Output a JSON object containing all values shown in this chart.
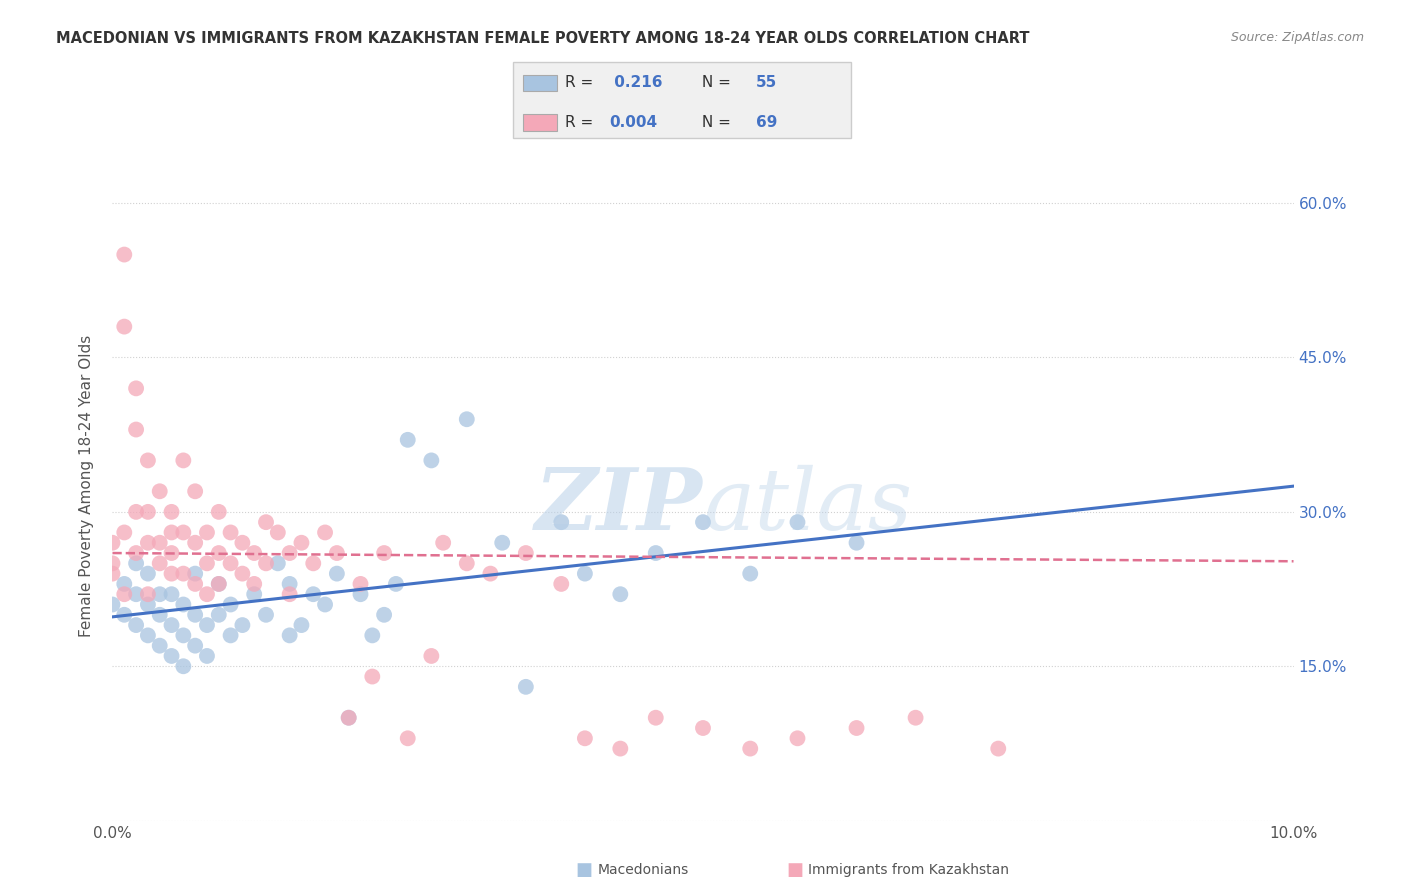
{
  "title": "MACEDONIAN VS IMMIGRANTS FROM KAZAKHSTAN FEMALE POVERTY AMONG 18-24 YEAR OLDS CORRELATION CHART",
  "source": "Source: ZipAtlas.com",
  "ylabel": "Female Poverty Among 18-24 Year Olds",
  "xlim": [
    0.0,
    0.1
  ],
  "ylim": [
    0.0,
    0.65
  ],
  "yticks": [
    0.0,
    0.15,
    0.3,
    0.45,
    0.6
  ],
  "xticks": [
    0.0,
    0.1
  ],
  "xtick_labels": [
    "0.0%",
    "10.0%"
  ],
  "right_ytick_labels": [
    "",
    "15.0%",
    "30.0%",
    "45.0%",
    "60.0%"
  ],
  "color_macedonian": "#a8c4e0",
  "color_kazakhstan": "#f4a8b8",
  "color_blue_text": "#4472c4",
  "trendline_blue": "#4472c4",
  "trendline_pink": "#e07090",
  "mac_x": [
    0.0,
    0.001,
    0.001,
    0.002,
    0.002,
    0.002,
    0.003,
    0.003,
    0.003,
    0.004,
    0.004,
    0.004,
    0.005,
    0.005,
    0.005,
    0.006,
    0.006,
    0.006,
    0.007,
    0.007,
    0.007,
    0.008,
    0.008,
    0.009,
    0.009,
    0.01,
    0.01,
    0.011,
    0.012,
    0.013,
    0.014,
    0.015,
    0.015,
    0.016,
    0.017,
    0.018,
    0.019,
    0.02,
    0.021,
    0.022,
    0.023,
    0.024,
    0.025,
    0.027,
    0.03,
    0.033,
    0.035,
    0.038,
    0.04,
    0.043,
    0.046,
    0.05,
    0.054,
    0.058,
    0.063
  ],
  "mac_y": [
    0.21,
    0.2,
    0.23,
    0.19,
    0.22,
    0.25,
    0.18,
    0.21,
    0.24,
    0.17,
    0.2,
    0.22,
    0.16,
    0.19,
    0.22,
    0.15,
    0.18,
    0.21,
    0.17,
    0.2,
    0.24,
    0.16,
    0.19,
    0.2,
    0.23,
    0.18,
    0.21,
    0.19,
    0.22,
    0.2,
    0.25,
    0.18,
    0.23,
    0.19,
    0.22,
    0.21,
    0.24,
    0.1,
    0.22,
    0.18,
    0.2,
    0.23,
    0.37,
    0.35,
    0.39,
    0.27,
    0.13,
    0.29,
    0.24,
    0.22,
    0.26,
    0.29,
    0.24,
    0.29,
    0.27
  ],
  "kaz_x": [
    0.0,
    0.0,
    0.0,
    0.001,
    0.001,
    0.001,
    0.001,
    0.002,
    0.002,
    0.002,
    0.002,
    0.003,
    0.003,
    0.003,
    0.003,
    0.004,
    0.004,
    0.004,
    0.005,
    0.005,
    0.005,
    0.005,
    0.006,
    0.006,
    0.006,
    0.007,
    0.007,
    0.007,
    0.008,
    0.008,
    0.008,
    0.009,
    0.009,
    0.009,
    0.01,
    0.01,
    0.011,
    0.011,
    0.012,
    0.012,
    0.013,
    0.013,
    0.014,
    0.015,
    0.015,
    0.016,
    0.017,
    0.018,
    0.019,
    0.02,
    0.021,
    0.022,
    0.023,
    0.025,
    0.027,
    0.028,
    0.03,
    0.032,
    0.035,
    0.038,
    0.04,
    0.043,
    0.046,
    0.05,
    0.054,
    0.058,
    0.063,
    0.068,
    0.075
  ],
  "kaz_y": [
    0.25,
    0.27,
    0.24,
    0.55,
    0.48,
    0.28,
    0.22,
    0.38,
    0.3,
    0.26,
    0.42,
    0.35,
    0.3,
    0.27,
    0.22,
    0.32,
    0.27,
    0.25,
    0.3,
    0.26,
    0.24,
    0.28,
    0.35,
    0.28,
    0.24,
    0.32,
    0.27,
    0.23,
    0.28,
    0.25,
    0.22,
    0.3,
    0.26,
    0.23,
    0.28,
    0.25,
    0.27,
    0.24,
    0.26,
    0.23,
    0.29,
    0.25,
    0.28,
    0.26,
    0.22,
    0.27,
    0.25,
    0.28,
    0.26,
    0.1,
    0.23,
    0.14,
    0.26,
    0.08,
    0.16,
    0.27,
    0.25,
    0.24,
    0.26,
    0.23,
    0.08,
    0.07,
    0.1,
    0.09,
    0.07,
    0.08,
    0.09,
    0.1,
    0.07
  ],
  "trendline_mac_y0": 0.198,
  "trendline_mac_y1": 0.325,
  "trendline_kaz_y0": 0.26,
  "trendline_kaz_y1": 0.252
}
